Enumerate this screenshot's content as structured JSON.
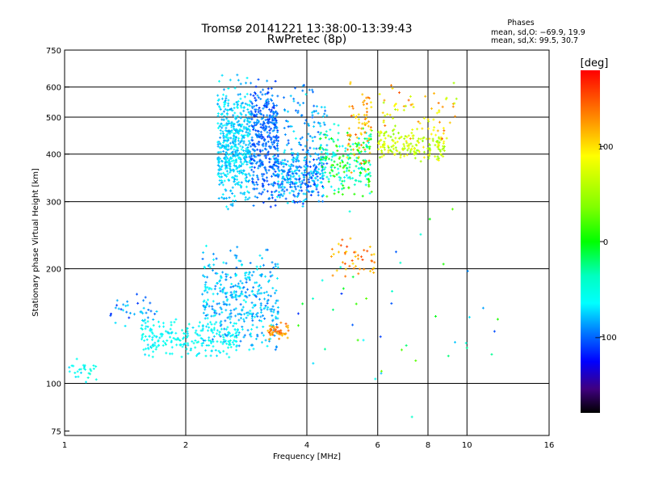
{
  "chart_data": {
    "type": "scatter",
    "title": "Tromsø 20141221 13:38:00-13:39:43",
    "subtitle": "RwPretec (8p)",
    "stats": {
      "heading": "Phases",
      "line_o": "mean, sd,O: −69.9, 19.9",
      "line_x": "mean, sd,X:  99.5, 30.7"
    },
    "xlabel": "Frequency [MHz]",
    "ylabel": "Stationary phase Virtual Height [km]",
    "x_scale": "log",
    "y_scale": "log",
    "xlim": [
      1,
      16
    ],
    "ylim": [
      73,
      750
    ],
    "x_ticks": [
      1,
      2,
      4,
      6,
      8,
      10,
      16
    ],
    "x_tick_labels": [
      "1",
      "2",
      "4",
      "6",
      "8",
      "10",
      "16"
    ],
    "y_ticks": [
      75,
      100,
      200,
      300,
      400,
      500,
      600,
      750
    ],
    "y_tick_labels": [
      "75",
      "100",
      "200",
      "300",
      "400",
      "500",
      "600",
      "750"
    ],
    "grid": true,
    "colorbar": {
      "label": "[deg]",
      "range": [
        -180,
        180
      ],
      "ticks": [
        100,
        0,
        -100
      ],
      "tick_labels": [
        "100",
        "0",
        "−100"
      ]
    },
    "clusters": [
      {
        "f": [
          2.4,
          2.9
        ],
        "h": [
          280,
          650
        ],
        "phase": [
          -85,
          -55
        ],
        "n": 520
      },
      {
        "f": [
          2.9,
          3.4
        ],
        "h": [
          285,
          650
        ],
        "phase": [
          -110,
          -80
        ],
        "n": 380
      },
      {
        "f": [
          3.3,
          4.4
        ],
        "h": [
          285,
          420
        ],
        "phase": [
          -110,
          -60
        ],
        "n": 300
      },
      {
        "f": [
          3.5,
          4.5
        ],
        "h": [
          330,
          640
        ],
        "phase": [
          -100,
          -60
        ],
        "n": 110
      },
      {
        "f": [
          4.3,
          5.8
        ],
        "h": [
          305,
          480
        ],
        "phase": [
          -70,
          30
        ],
        "n": 220
      },
      {
        "f": [
          5.0,
          5.8
        ],
        "h": [
          350,
          650
        ],
        "phase": [
          90,
          150
        ],
        "n": 70
      },
      {
        "f": [
          6.0,
          9.0
        ],
        "h": [
          380,
          470
        ],
        "phase": [
          40,
          100
        ],
        "n": 180
      },
      {
        "f": [
          6.0,
          9.5
        ],
        "h": [
          420,
          640
        ],
        "phase": [
          50,
          150
        ],
        "n": 60
      },
      {
        "f": [
          1.55,
          2.7
        ],
        "h": [
          115,
          150
        ],
        "phase": [
          -70,
          -45
        ],
        "n": 220
      },
      {
        "f": [
          2.2,
          3.4
        ],
        "h": [
          120,
          230
        ],
        "phase": [
          -95,
          -55
        ],
        "n": 380
      },
      {
        "f": [
          3.2,
          3.6
        ],
        "h": [
          130,
          145
        ],
        "phase": [
          110,
          150
        ],
        "n": 50
      },
      {
        "f": [
          1.0,
          1.2
        ],
        "h": [
          100,
          118
        ],
        "phase": [
          -70,
          -40
        ],
        "n": 30
      },
      {
        "f": [
          4.6,
          5.9
        ],
        "h": [
          185,
          245
        ],
        "phase": [
          100,
          160
        ],
        "n": 45
      },
      {
        "f": [
          1.3,
          1.7
        ],
        "h": [
          135,
          175
        ],
        "phase": [
          -110,
          -60
        ],
        "n": 40
      },
      {
        "f": [
          3.8,
          12.0
        ],
        "h": [
          80,
          300
        ],
        "phase": [
          -110,
          40
        ],
        "n": 45
      }
    ]
  }
}
